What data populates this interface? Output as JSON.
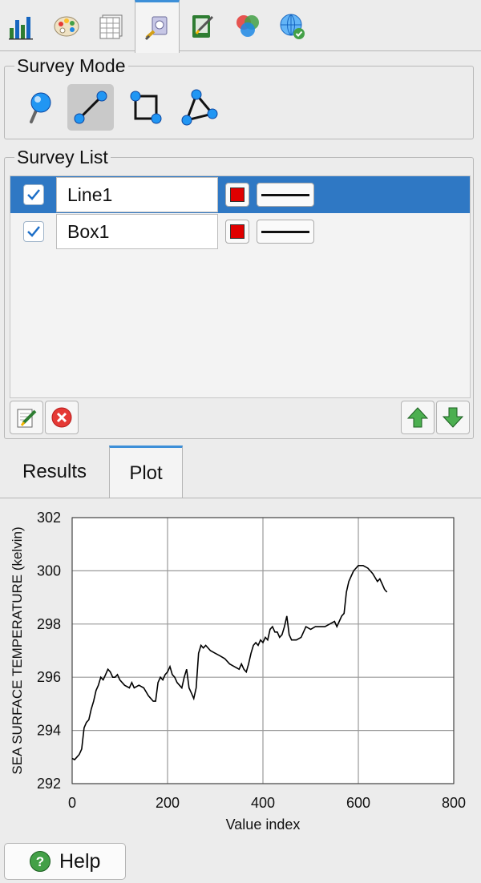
{
  "toolbar": {
    "tabs": [
      {
        "icon": "bar-chart-icon",
        "active": false
      },
      {
        "icon": "palette-icon",
        "active": false
      },
      {
        "icon": "grid-table-icon",
        "active": false
      },
      {
        "icon": "survey-tool-icon",
        "active": true
      },
      {
        "icon": "notebook-edit-icon",
        "active": false
      },
      {
        "icon": "color-circles-icon",
        "active": false
      },
      {
        "icon": "globe-check-icon",
        "active": false
      }
    ]
  },
  "survey_mode": {
    "title": "Survey Mode",
    "modes": [
      {
        "icon": "point-pin-icon",
        "selected": false
      },
      {
        "icon": "line-segment-icon",
        "selected": true
      },
      {
        "icon": "box-icon",
        "selected": false
      },
      {
        "icon": "polygon-icon",
        "selected": false
      }
    ]
  },
  "survey_list": {
    "title": "Survey List",
    "items": [
      {
        "checked": true,
        "name": "Line1",
        "color": "#e00000",
        "selected": true
      },
      {
        "checked": true,
        "name": "Box1",
        "color": "#e00000",
        "selected": false
      }
    ],
    "buttons": [
      "edit-icon",
      "delete-icon",
      "move-up-icon",
      "move-down-icon"
    ]
  },
  "tabs": {
    "results": "Results",
    "plot": "Plot",
    "active": "plot"
  },
  "chart_data": {
    "type": "line",
    "title": "",
    "xlabel": "Value index",
    "ylabel": "SEA SURFACE TEMPERATURE (kelvin)",
    "xlim": [
      0,
      800
    ],
    "ylim": [
      292,
      302
    ],
    "xticks": [
      "0",
      "200",
      "400",
      "600",
      "800"
    ],
    "yticks": [
      "292",
      "294",
      "296",
      "298",
      "300",
      "302"
    ],
    "grid": true,
    "series": [
      {
        "color": "#000000",
        "x": [
          0,
          5,
          10,
          15,
          20,
          25,
          30,
          35,
          40,
          45,
          50,
          55,
          60,
          65,
          70,
          75,
          80,
          85,
          90,
          95,
          100,
          110,
          120,
          125,
          130,
          140,
          150,
          160,
          165,
          170,
          175,
          180,
          185,
          190,
          195,
          200,
          205,
          210,
          215,
          220,
          225,
          230,
          235,
          240,
          245,
          250,
          255,
          260,
          265,
          270,
          275,
          280,
          290,
          300,
          310,
          320,
          330,
          340,
          350,
          355,
          360,
          365,
          370,
          375,
          380,
          385,
          390,
          395,
          400,
          405,
          410,
          415,
          420,
          425,
          430,
          435,
          440,
          445,
          450,
          455,
          460,
          470,
          480,
          490,
          500,
          510,
          520,
          530,
          540,
          550,
          555,
          560,
          565,
          570,
          575,
          580,
          585,
          590,
          600,
          610,
          620,
          630,
          640,
          645,
          650,
          655,
          660
        ],
        "y": [
          292.95,
          292.9,
          293.0,
          293.1,
          293.3,
          294.1,
          294.3,
          294.4,
          294.8,
          295.1,
          295.5,
          295.7,
          296.0,
          295.9,
          296.1,
          296.3,
          296.2,
          296.0,
          296.0,
          296.1,
          295.9,
          295.7,
          295.6,
          295.8,
          295.6,
          295.7,
          295.6,
          295.3,
          295.2,
          295.1,
          295.1,
          295.8,
          296.0,
          295.9,
          296.1,
          296.2,
          296.4,
          296.1,
          296.0,
          295.8,
          295.7,
          295.6,
          296.0,
          296.3,
          295.6,
          295.4,
          295.2,
          295.6,
          296.9,
          297.2,
          297.1,
          297.2,
          297.0,
          296.9,
          296.8,
          296.7,
          296.5,
          296.4,
          296.3,
          296.5,
          296.3,
          296.2,
          296.5,
          296.9,
          297.2,
          297.3,
          297.2,
          297.4,
          297.3,
          297.5,
          297.4,
          297.8,
          297.9,
          297.7,
          297.7,
          297.5,
          297.6,
          297.9,
          298.3,
          297.6,
          297.4,
          297.4,
          297.5,
          297.9,
          297.8,
          297.9,
          297.9,
          297.9,
          298.0,
          298.1,
          297.9,
          298.1,
          298.3,
          298.4,
          299.2,
          299.6,
          299.8,
          300.0,
          300.2,
          300.2,
          300.1,
          299.9,
          299.6,
          299.7,
          299.5,
          299.3,
          299.2
        ]
      }
    ]
  },
  "help": {
    "label": "Help"
  }
}
